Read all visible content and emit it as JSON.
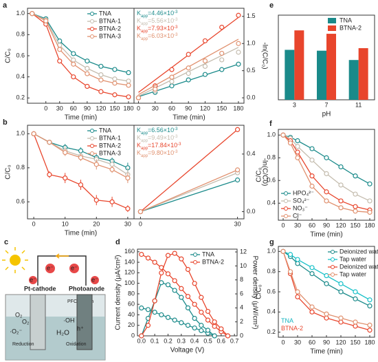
{
  "chart_data": [
    {
      "type": "line",
      "panel": "a",
      "x_label": "Time (min)",
      "y_label": "C/C₀",
      "x": [
        -30,
        0,
        30,
        60,
        90,
        120,
        150,
        180
      ],
      "xlim": [
        -40,
        192
      ],
      "xticks": [
        0,
        30,
        60,
        90,
        120,
        150,
        180
      ],
      "ylim": [
        0.15,
        1.05
      ],
      "yticks": [
        0.2,
        0.4,
        0.6,
        0.8,
        {
          "value": 1,
          "label": "1.0"
        }
      ],
      "legend": "upper right",
      "series": [
        {
          "name": "TNA",
          "color": "#1a8a8a",
          "values": [
            1.0,
            0.95,
            0.74,
            0.62,
            0.55,
            0.5,
            0.47,
            0.44
          ]
        },
        {
          "name": "BTNA-1",
          "color": "#c4bcae",
          "values": [
            1.0,
            0.94,
            0.7,
            0.56,
            0.48,
            0.42,
            0.38,
            0.36
          ]
        },
        {
          "name": "BTNA-2",
          "color": "#e8452c",
          "values": [
            1.0,
            0.9,
            0.55,
            0.4,
            0.31,
            0.26,
            0.23,
            0.21
          ]
        },
        {
          "name": "BTNA-3",
          "color": "#e0906e",
          "values": [
            1.0,
            0.93,
            0.66,
            0.52,
            0.43,
            0.37,
            0.34,
            0.32
          ]
        }
      ]
    },
    {
      "type": "scatter_fit",
      "x_label": "Time (min)",
      "y_label": "-ln(C/C₀)",
      "yaxis": "right",
      "x": [
        0,
        30,
        60,
        90,
        120,
        150,
        180
      ],
      "xlim": [
        -8,
        190
      ],
      "xticks": [
        0,
        30,
        60,
        90,
        120,
        150,
        180
      ],
      "ylim": [
        -0.1,
        1.65
      ],
      "yticks": [
        {
          "value": 0,
          "label": "0.0"
        },
        0.5,
        {
          "value": 1,
          "label": "1.0"
        },
        1.5
      ],
      "annotation_corner": "upper left",
      "annotations": [
        {
          "base": "K",
          "sub": "app",
          "text": "=4.46×10",
          "sup": "-3",
          "color": "#1a8a8a"
        },
        {
          "base": "K",
          "sub": "app",
          "text": "=5.56×10",
          "sup": "-3",
          "color": "#c4bcae"
        },
        {
          "base": "K",
          "sub": "app",
          "text": "=7.93×10",
          "sup": "-3",
          "color": "#e8452c"
        },
        {
          "base": "K",
          "sub": "app",
          "text": "=6.03×10",
          "sup": "-3",
          "color": "#e0906e"
        }
      ],
      "series": [
        {
          "color": "#1a8a8a",
          "values": [
            0,
            0.1,
            0.22,
            0.33,
            0.43,
            0.52,
            0.62
          ],
          "fit": [
            0.02,
            0.62
          ]
        },
        {
          "color": "#c4bcae",
          "values": [
            0,
            0.13,
            0.3,
            0.45,
            0.58,
            0.7,
            0.84
          ],
          "fit": [
            0.03,
            0.93
          ]
        },
        {
          "color": "#e8452c",
          "values": [
            0,
            0.22,
            0.52,
            0.8,
            1.05,
            1.3,
            1.52
          ],
          "fit": [
            0.1,
            1.48
          ]
        },
        {
          "color": "#e0906e",
          "values": [
            0,
            0.16,
            0.38,
            0.55,
            0.68,
            0.82,
            1.0
          ],
          "fit": [
            0.06,
            1.08
          ]
        }
      ]
    },
    {
      "type": "bar",
      "panel": "e",
      "x_label": "pH",
      "categories": [
        "3",
        "7",
        "11"
      ],
      "ylim": [
        0,
        1
      ],
      "legend": "upper right",
      "series": [
        {
          "name": "TNA",
          "color": "#1a8a8a",
          "values": [
            0.59,
            0.58,
            0.47
          ]
        },
        {
          "name": "BTNA-2",
          "color": "#e8452c",
          "values": [
            0.82,
            0.78,
            0.61
          ]
        }
      ]
    },
    {
      "type": "line",
      "panel": "b",
      "x_label": "Time (min)",
      "y_label": "C/C₀",
      "x": [
        0,
        5,
        10,
        15,
        20,
        25,
        30
      ],
      "xlim": [
        -2,
        32
      ],
      "xticks": [
        0,
        10,
        20,
        30
      ],
      "ylim": [
        0.5,
        1.05
      ],
      "yticks": [
        0.6,
        0.8,
        {
          "value": 1,
          "label": "1.0"
        }
      ],
      "legend": "upper right",
      "series": [
        {
          "name": "TNA",
          "color": "#1a8a8a",
          "values": [
            1.0,
            0.95,
            0.92,
            0.9,
            0.86,
            0.84,
            0.8
          ],
          "errors": [
            0,
            0.01,
            0.02,
            0.02,
            0.02,
            0.02,
            0.03
          ]
        },
        {
          "name": "BTNA-1",
          "color": "#c4bcae",
          "values": [
            1.0,
            0.95,
            0.9,
            0.87,
            0.85,
            0.82,
            0.76
          ],
          "errors": [
            0,
            0.01,
            0.03,
            0.02,
            0.02,
            0.03,
            0.04
          ]
        },
        {
          "name": "BTNA-2",
          "color": "#e8452c",
          "values": [
            1.0,
            0.76,
            0.74,
            0.7,
            0.61,
            0.6,
            0.56
          ],
          "errors": [
            0,
            0.02,
            0.03,
            0.03,
            0.03,
            0.03,
            0.02
          ]
        },
        {
          "name": "BTNA-3",
          "color": "#e0906e",
          "values": [
            1.0,
            0.95,
            0.89,
            0.86,
            0.82,
            0.79,
            0.74
          ],
          "errors": [
            0,
            0.01,
            0.02,
            0.02,
            0.03,
            0.02,
            0.03
          ]
        }
      ]
    },
    {
      "type": "scatter_fit",
      "y_label": "-ln(C/C0)",
      "yaxis": "right",
      "x": [
        0,
        30
      ],
      "xlim": [
        -2,
        32
      ],
      "xticks": [
        0,
        30
      ],
      "ylim": [
        -0.05,
        0.6
      ],
      "yticks": [
        {
          "value": 0,
          "label": "0.0"
        },
        0.4
      ],
      "annotation_corner": "upper left",
      "annotations": [
        {
          "base": "K",
          "sub": "app",
          "text": "=6.56×10",
          "sup": "-3",
          "color": "#1a8a8a"
        },
        {
          "base": "K",
          "sub": "app",
          "text": "=9.49×10",
          "sup": "-3",
          "color": "#c4bcae"
        },
        {
          "base": "K",
          "sub": "app",
          "text": "=17.84×10",
          "sup": "-3",
          "color": "#e8452c"
        },
        {
          "base": "K",
          "sub": "app",
          "text": "=9.80×10",
          "sup": "-3",
          "color": "#e0906e"
        }
      ],
      "series": [
        {
          "color": "#1a8a8a",
          "values": [
            0,
            0.22
          ],
          "fit": [
            0,
            0.22
          ]
        },
        {
          "color": "#c4bcae",
          "values": [
            0,
            0.27
          ],
          "fit": [
            0,
            0.27
          ]
        },
        {
          "color": "#e8452c",
          "values": [
            0,
            0.57
          ],
          "fit": [
            0,
            0.57
          ]
        },
        {
          "color": "#e0906e",
          "values": [
            0,
            0.29
          ],
          "fit": [
            0,
            0.29
          ]
        }
      ]
    },
    {
      "type": "line",
      "panel": "f",
      "x_label": "Time (min)",
      "y_label": "C/C₀",
      "x": [
        0,
        15,
        30,
        60,
        90,
        120,
        150,
        180
      ],
      "xlim": [
        -10,
        190
      ],
      "xticks": [
        0,
        30,
        60,
        90,
        120,
        150,
        180
      ],
      "ylim": [
        0.25,
        1.05
      ],
      "yticks": [
        0.4,
        0.6,
        0.8,
        {
          "value": 1,
          "label": "1.0"
        }
      ],
      "legend": "lower left",
      "series": [
        {
          "name": "HPO₄²⁻",
          "color": "#1a8a8a",
          "values": [
            1.0,
            0.98,
            0.95,
            0.88,
            0.8,
            0.72,
            0.64,
            0.57
          ]
        },
        {
          "name": "SO₄²⁻",
          "color": "#c4bcae",
          "values": [
            1.0,
            0.97,
            0.9,
            0.78,
            0.66,
            0.56,
            0.48,
            0.42
          ]
        },
        {
          "name": "NO₃⁻",
          "color": "#e8452c",
          "values": [
            1.0,
            0.95,
            0.85,
            0.64,
            0.5,
            0.42,
            0.37,
            0.34
          ]
        },
        {
          "name": "Cl⁻",
          "color": "#e0906e",
          "values": [
            1.0,
            0.93,
            0.8,
            0.55,
            0.42,
            0.36,
            0.33,
            0.32
          ]
        }
      ]
    },
    {
      "type": "line",
      "panel": "d",
      "x_label": "Voltage (V)",
      "y_label": "Current density (μA/cm²)",
      "y2_label": "Power density (μW/cm²)",
      "xlim": [
        -0.03,
        0.72
      ],
      "xticks": [
        {
          "value": 0,
          "label": "0.0"
        },
        0.1,
        0.2,
        0.3,
        0.4,
        0.5,
        0.6,
        0.7
      ],
      "ylim": [
        0,
        165
      ],
      "yticks": [
        0,
        20,
        40,
        60,
        80,
        100,
        120,
        140,
        160
      ],
      "y2lim": [
        0,
        12.4
      ],
      "y2ticks": [
        0,
        2,
        4,
        6,
        8,
        10,
        12
      ],
      "legend": "upper right",
      "series": [
        {
          "name": "TNA",
          "color": "#1a8a8a",
          "x": [
            0,
            0.05,
            0.1,
            0.15,
            0.2,
            0.25,
            0.3,
            0.35,
            0.4,
            0.45,
            0.5,
            0.55
          ],
          "values": [
            53,
            50,
            45,
            40,
            35,
            30,
            25,
            20,
            15,
            10,
            5,
            0
          ]
        },
        {
          "color": "#1a8a8a",
          "axis": "y2",
          "x": [
            0,
            0.05,
            0.1,
            0.15,
            0.2,
            0.25,
            0.3,
            0.35,
            0.4,
            0.45,
            0.5,
            0.55
          ],
          "values": [
            0,
            2.5,
            5,
            7.6,
            7.3,
            6.5,
            5.5,
            4,
            2.5,
            1.5,
            0.8,
            0
          ]
        },
        {
          "name": "BTNA-2",
          "color": "#e8452c",
          "x": [
            0,
            0.05,
            0.1,
            0.15,
            0.2,
            0.25,
            0.3,
            0.35,
            0.4,
            0.45,
            0.5,
            0.55,
            0.6,
            0.65
          ],
          "values": [
            155,
            148,
            140,
            130,
            118,
            105,
            90,
            75,
            60,
            45,
            30,
            18,
            8,
            0
          ]
        },
        {
          "color": "#e8452c",
          "axis": "y2",
          "x": [
            0,
            0.05,
            0.1,
            0.15,
            0.2,
            0.25,
            0.3,
            0.35,
            0.4,
            0.45,
            0.5,
            0.55,
            0.6,
            0.65
          ],
          "values": [
            0,
            1.5,
            5,
            9,
            11.5,
            11.8,
            11,
            9.5,
            7.5,
            5.5,
            3.5,
            2,
            1,
            0
          ]
        }
      ]
    },
    {
      "type": "line",
      "panel": "g",
      "x_label": "Time (min)",
      "y_label": "C/C₀",
      "x": [
        0,
        15,
        30,
        60,
        90,
        120,
        150,
        180
      ],
      "xlim": [
        -10,
        190
      ],
      "xticks": [
        0,
        30,
        60,
        90,
        120,
        150,
        180
      ],
      "ylim": [
        0.15,
        1.05
      ],
      "yticks": [
        0.2,
        0.4,
        0.6,
        0.8,
        {
          "value": 1,
          "label": "1.0"
        }
      ],
      "legend": "upper right",
      "annotation_corner": "lower left",
      "annotations": [
        {
          "text": "TNA",
          "color": "#16b5c0"
        },
        {
          "text": "BTNA-2",
          "color": "#e8452c"
        }
      ],
      "series": [
        {
          "name": "Deionized water",
          "color": "#1a8a8a",
          "values": [
            1.0,
            0.95,
            0.88,
            0.78,
            0.68,
            0.6,
            0.53,
            0.46
          ]
        },
        {
          "name": "Tap water",
          "color": "#16c0c8",
          "values": [
            1.0,
            0.97,
            0.92,
            0.84,
            0.76,
            0.68,
            0.6,
            0.52
          ]
        },
        {
          "name": "Deionized water",
          "color": "#e8452c",
          "values": [
            1.0,
            0.78,
            0.55,
            0.4,
            0.34,
            0.3,
            0.26,
            0.22
          ]
        },
        {
          "name": "Tap water",
          "color": "#e0906e",
          "values": [
            1.0,
            0.8,
            0.6,
            0.45,
            0.38,
            0.34,
            0.3,
            0.27
          ]
        }
      ]
    }
  ],
  "diagram": {
    "panel": "c",
    "cathode": "Pt-cathode",
    "anode": "Photoanode",
    "system": "PFC system",
    "electron": "e⁻",
    "o2": "O₂",
    "superoxide": "·O₂⁻",
    "reduction": "Reduction",
    "oxidation": "Oxidation",
    "hydroxyl": "·OH",
    "water": "H₂O",
    "hole": "h⁺"
  }
}
